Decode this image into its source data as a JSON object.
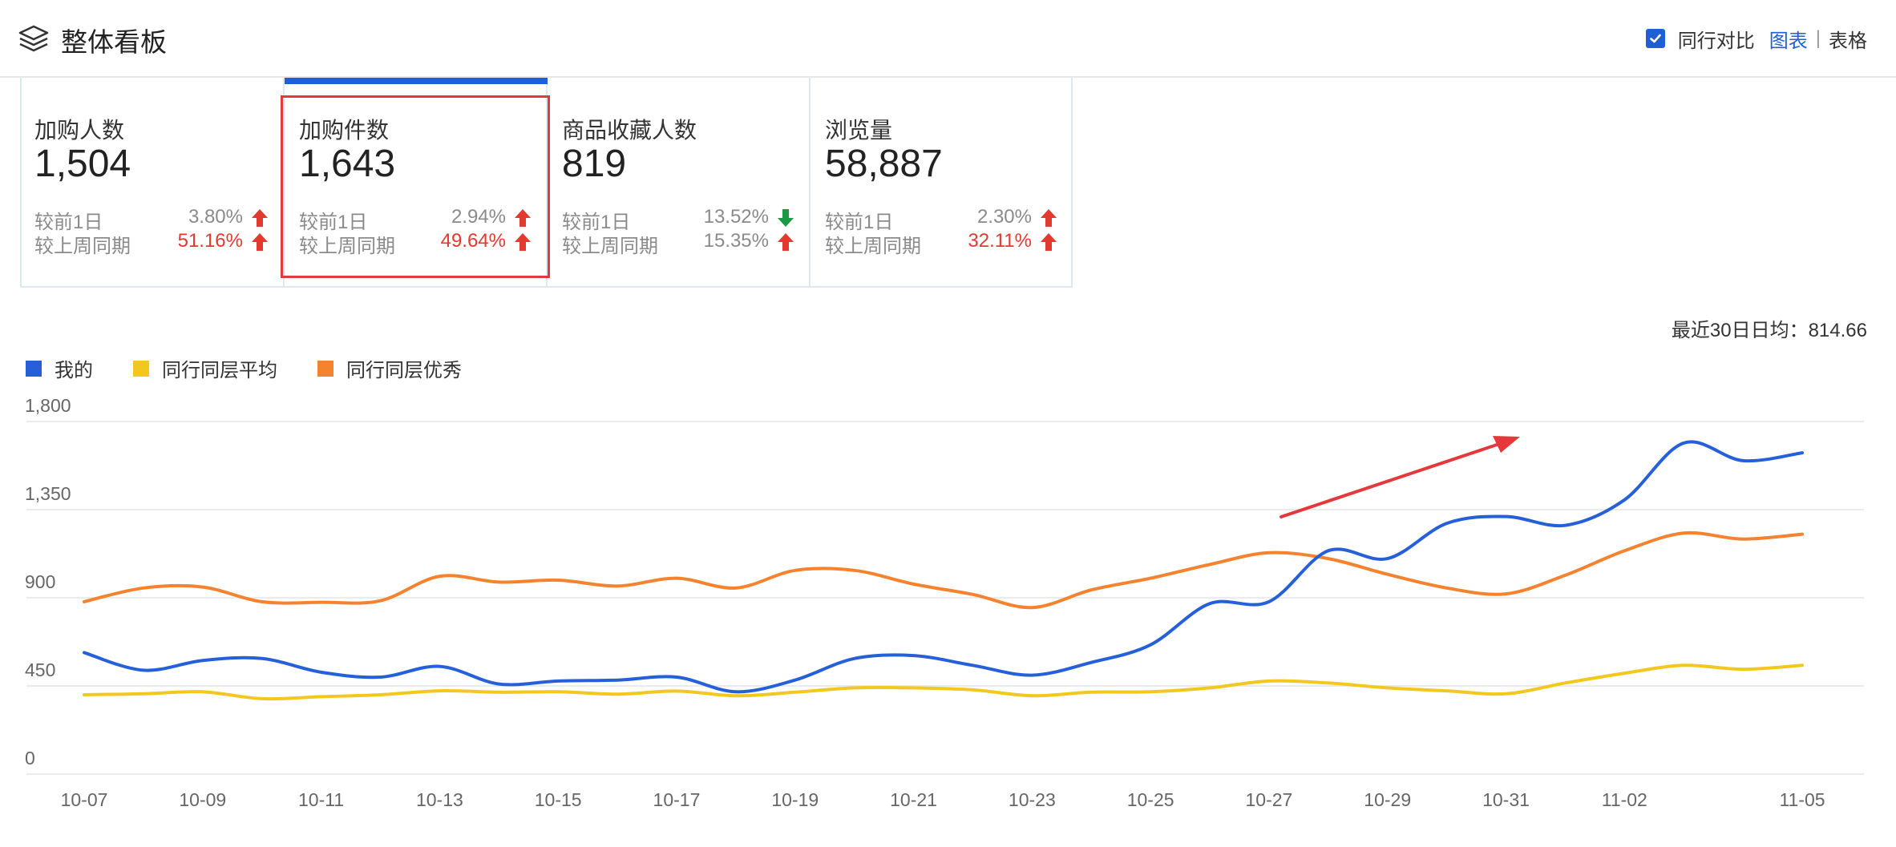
{
  "header": {
    "title": "整体看板",
    "compare_label": "同行对比",
    "chart_link": "图表",
    "separator": "|",
    "table_link": "表格"
  },
  "cards": [
    {
      "label": "加购人数",
      "value": "1,504",
      "r1_label": "较前1日",
      "r1_value": "3.80%",
      "r1_dir": "up",
      "r1_red": false,
      "r2_label": "较上周同期",
      "r2_value": "51.16%",
      "r2_dir": "up",
      "r2_red": true
    },
    {
      "label": "加购件数",
      "value": "1,643",
      "r1_label": "较前1日",
      "r1_value": "2.94%",
      "r1_dir": "up",
      "r1_red": false,
      "r2_label": "较上周同期",
      "r2_value": "49.64%",
      "r2_dir": "up",
      "r2_red": true
    },
    {
      "label": "商品收藏人数",
      "value": "819",
      "r1_label": "较前1日",
      "r1_value": "13.52%",
      "r1_dir": "down",
      "r1_red": false,
      "r2_label": "较上周同期",
      "r2_value": "15.35%",
      "r2_dir": "up",
      "r2_red": false
    },
    {
      "label": "浏览量",
      "value": "58,887",
      "r1_label": "较前1日",
      "r1_value": "2.30%",
      "r1_dir": "up",
      "r1_red": false,
      "r2_label": "较上周同期",
      "r2_value": "32.11%",
      "r2_dir": "up",
      "r2_red": true
    }
  ],
  "selected_card": 1,
  "avg_text": "最近30日日均：814.66",
  "colors": {
    "accent": "#1f5fd6",
    "up": "#e23a2e",
    "down": "#1a9a43",
    "mine": "#2660d9",
    "avg": "#f2c81f",
    "best": "#f5822e",
    "annotation": "#e5383b"
  },
  "chart_data": {
    "type": "line",
    "ylim": [
      0,
      1800
    ],
    "yticks": [
      0,
      450,
      900,
      1350,
      1800
    ],
    "ytick_labels": [
      "0",
      "450",
      "900",
      "1,350",
      "1,800"
    ],
    "x": [
      "10-07",
      "10-08",
      "10-09",
      "10-10",
      "10-11",
      "10-12",
      "10-13",
      "10-14",
      "10-15",
      "10-16",
      "10-17",
      "10-18",
      "10-19",
      "10-20",
      "10-21",
      "10-22",
      "10-23",
      "10-24",
      "10-25",
      "10-26",
      "10-27",
      "10-28",
      "10-29",
      "10-30",
      "10-31",
      "11-01",
      "11-02",
      "11-03",
      "11-04",
      "11-05"
    ],
    "xtick_labels": [
      "10-07",
      "10-09",
      "10-11",
      "10-13",
      "10-15",
      "10-17",
      "10-19",
      "10-21",
      "10-23",
      "10-25",
      "10-27",
      "10-29",
      "10-31",
      "11-02",
      "11-05"
    ],
    "grid": true,
    "legend_position": "top-left",
    "series": [
      {
        "name": "我的",
        "color": "#2660d9",
        "values": [
          620,
          530,
          580,
          590,
          520,
          495,
          550,
          460,
          475,
          480,
          495,
          420,
          480,
          590,
          605,
          555,
          505,
          570,
          660,
          870,
          880,
          1140,
          1100,
          1280,
          1315,
          1270,
          1400,
          1690,
          1600,
          1640
        ]
      },
      {
        "name": "同行同层平均",
        "color": "#f2c81f",
        "values": [
          405,
          410,
          420,
          385,
          395,
          405,
          425,
          418,
          420,
          408,
          424,
          400,
          418,
          440,
          440,
          430,
          400,
          418,
          420,
          440,
          475,
          465,
          440,
          425,
          410,
          465,
          515,
          555,
          535,
          555
        ]
      },
      {
        "name": "同行同层优秀",
        "color": "#f5822e",
        "values": [
          880,
          950,
          955,
          880,
          877,
          885,
          1010,
          980,
          990,
          960,
          1000,
          950,
          1040,
          1040,
          970,
          917,
          850,
          940,
          1000,
          1070,
          1130,
          1100,
          1020,
          950,
          920,
          1015,
          1140,
          1230,
          1200,
          1225
        ]
      }
    ]
  }
}
